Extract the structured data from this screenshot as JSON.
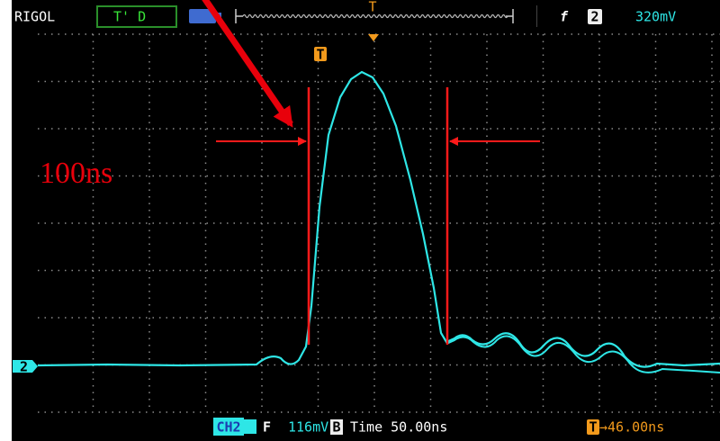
{
  "header": {
    "brand": "RIGOL",
    "mode": "T' D",
    "trigger_marker": "T",
    "trigger_slope": "f",
    "trigger_channel": "2",
    "trigger_level": "320mV"
  },
  "screen": {
    "trigger_position": "T",
    "channel_marker": "2"
  },
  "annotation": {
    "label": "100ns"
  },
  "footer": {
    "channel": "CH2",
    "coupling": "F",
    "volts_div": "116mV",
    "bw_limit": "B",
    "time_base": "Time 50.00ns",
    "trigger_icon": "T",
    "trigger_offset": "→46.00ns"
  }
}
